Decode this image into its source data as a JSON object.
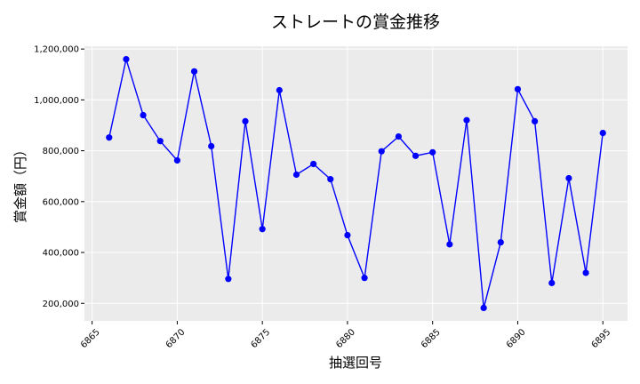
{
  "chart_data": {
    "type": "line",
    "title": "ストレートの賞金推移",
    "xlabel": "抽選回号",
    "ylabel": "賞金額（円）",
    "x": [
      6866,
      6867,
      6868,
      6869,
      6870,
      6871,
      6872,
      6873,
      6874,
      6875,
      6876,
      6877,
      6878,
      6879,
      6880,
      6881,
      6882,
      6883,
      6884,
      6885,
      6886,
      6887,
      6888,
      6889,
      6890,
      6891,
      6892,
      6893,
      6894,
      6895
    ],
    "series": [
      {
        "values": [
          852000,
          1160000,
          940000,
          838000,
          762000,
          1112000,
          818000,
          296000,
          916000,
          492000,
          1038000,
          706000,
          748000,
          688000,
          468000,
          300000,
          798000,
          856000,
          780000,
          794000,
          432000,
          920000,
          182000,
          440000,
          1042000,
          916000,
          280000,
          692000,
          320000,
          870000
        ],
        "color": "#0000ff"
      }
    ],
    "xticks": [
      6865,
      6870,
      6875,
      6880,
      6885,
      6890,
      6895
    ],
    "xtick_labels": [
      "6865",
      "6870",
      "6875",
      "6880",
      "6885",
      "6890",
      "6895"
    ],
    "yticks": [
      200000,
      400000,
      600000,
      800000,
      1000000,
      1200000
    ],
    "ytick_labels": [
      "200,000",
      "400,000",
      "600,000",
      "800,000",
      "1,000,000",
      "1,200,000"
    ],
    "xlim": [
      6864.55,
      6896.45
    ],
    "ylim": [
      131000,
      1211000
    ],
    "grid": true,
    "plot_background": "#ebebeb"
  }
}
